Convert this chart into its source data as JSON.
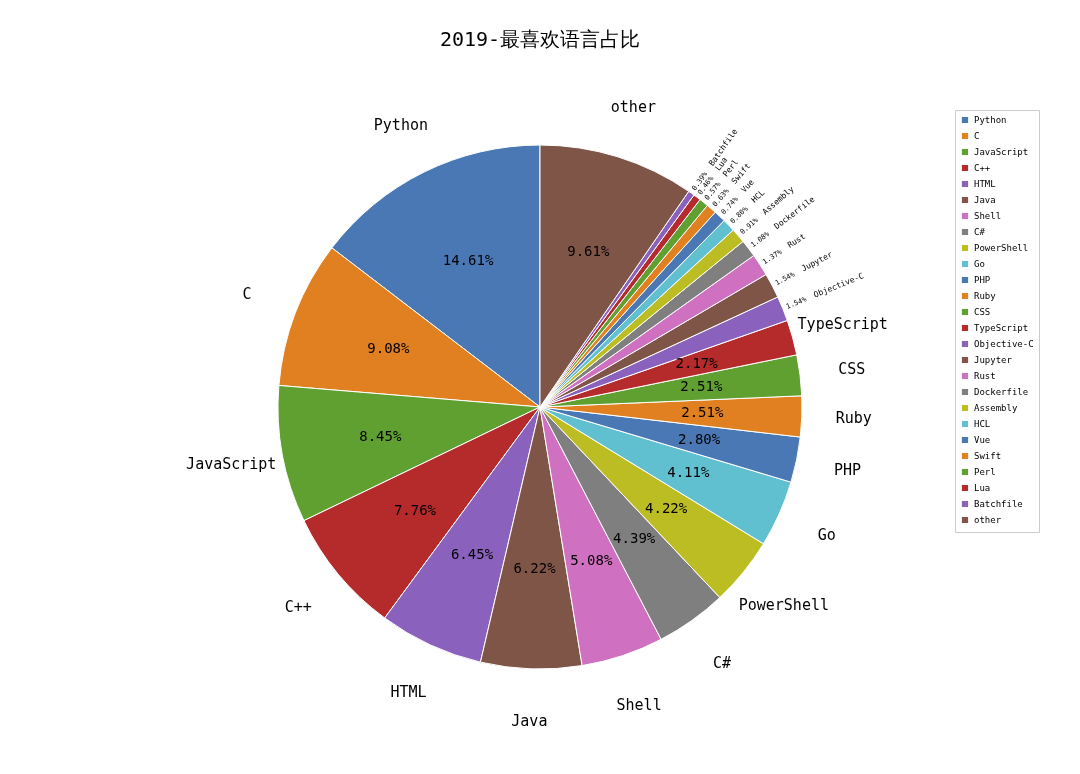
{
  "chart_data": {
    "type": "pie",
    "title": "2019-最喜欢语言占比",
    "categories": [
      "Python",
      "C",
      "JavaScript",
      "C++",
      "HTML",
      "Java",
      "Shell",
      "C#",
      "PowerShell",
      "Go",
      "PHP",
      "Ruby",
      "CSS",
      "TypeScript",
      "Objective-C",
      "Jupyter",
      "Rust",
      "Dockerfile",
      "Assembly",
      "HCL",
      "Vue",
      "Swift",
      "Perl",
      "Lua",
      "Batchfile",
      "other"
    ],
    "values": [
      14.61,
      9.08,
      8.45,
      7.76,
      6.45,
      6.22,
      5.08,
      4.39,
      4.22,
      4.11,
      2.8,
      2.51,
      2.51,
      2.17,
      1.54,
      1.54,
      1.37,
      1.08,
      0.91,
      0.8,
      0.74,
      0.63,
      0.57,
      0.46,
      0.39,
      9.61
    ],
    "value_labels": [
      "14.61%",
      "9.08%",
      "8.45%",
      "7.76%",
      "6.45%",
      "6.22%",
      "5.08%",
      "4.39%",
      "4.22%",
      "4.11%",
      "2.80%",
      "2.51%",
      "2.51%",
      "2.17%",
      "1.54%",
      "1.54%",
      "1.37%",
      "1.08%",
      "0.91%",
      "0.80%",
      "0.74%",
      "0.63%",
      "0.57%",
      "0.46%",
      "0.39%",
      "9.61%"
    ],
    "colors": [
      "#4a78b5",
      "#e08020",
      "#5fa030",
      "#b52a2a",
      "#8a62be",
      "#7f5548",
      "#d070c0",
      "#7f7f7f",
      "#bcbd22",
      "#60c0d0",
      "#4a78b5",
      "#e08020",
      "#5fa030",
      "#b52a2a",
      "#8a62be",
      "#7f5548",
      "#d070c0",
      "#7f7f7f",
      "#bcbd22",
      "#60c0d0",
      "#4a78b5",
      "#e08020",
      "#5fa030",
      "#b52a2a",
      "#8a62be",
      "#7f5548"
    ],
    "legend": "top right"
  }
}
